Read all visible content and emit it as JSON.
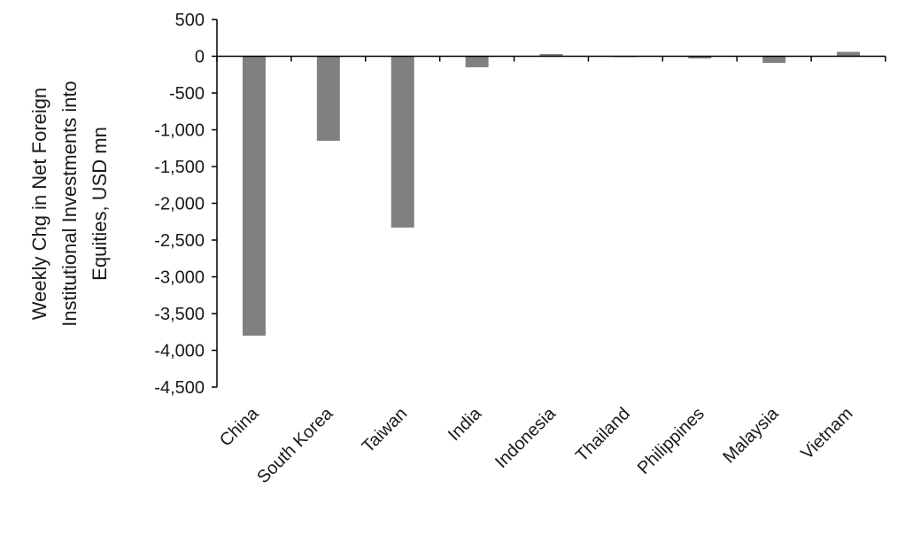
{
  "chart_data": {
    "type": "bar",
    "title": "",
    "xlabel": "",
    "ylabel": "Weekly Chg in Net Foreign Institutional Investments into Equities, USD mn",
    "ylabel_lines": [
      "Weekly Chg in Net Foreign",
      "Institutional Investments into",
      "Equities, USD mn"
    ],
    "categories": [
      "China",
      "South Korea",
      "Taiwan",
      "India",
      "Indonesia",
      "Thailand",
      "Philippines",
      "Malaysia",
      "Vietnam"
    ],
    "values": [
      -3800,
      -1150,
      -2330,
      -150,
      30,
      -5,
      -30,
      -90,
      60
    ],
    "ylim": [
      -4500,
      500
    ],
    "yticks": [
      500,
      0,
      -500,
      -1000,
      -1500,
      -2000,
      -2500,
      -3000,
      -3500,
      -4000,
      -4500
    ],
    "ytick_labels": [
      "500",
      "0",
      "-500",
      "-1,000",
      "-1,500",
      "-2,000",
      "-2,500",
      "-3,000",
      "-3,500",
      "-4,000",
      "-4,500"
    ],
    "bar_color": "#808080",
    "grid": false,
    "legend": "none"
  }
}
